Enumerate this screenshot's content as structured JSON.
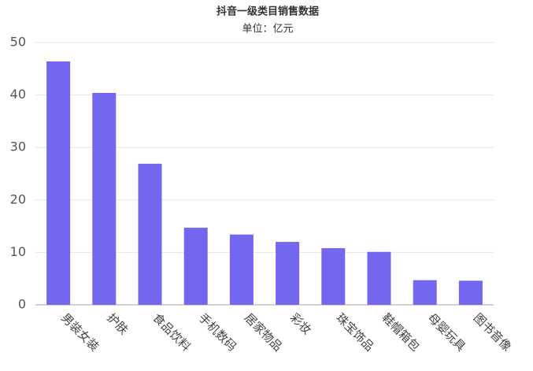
{
  "chart_data": {
    "type": "bar",
    "title": "抖音一级类目销售数据",
    "subtitle": "单位：亿元",
    "categories": [
      "男装女装",
      "护肤",
      "食品饮料",
      "手机数码",
      "居家物品",
      "彩妆",
      "珠宝饰品",
      "鞋帽箱包",
      "母婴玩具",
      "图书音像"
    ],
    "values": [
      46.4,
      40.4,
      26.9,
      14.7,
      13.4,
      12.0,
      10.8,
      10.1,
      4.7,
      4.6
    ],
    "color": "#7367f0",
    "ylim": [
      0,
      50
    ],
    "yticks": [
      0,
      10,
      20,
      30,
      40,
      50
    ],
    "grid": true
  }
}
